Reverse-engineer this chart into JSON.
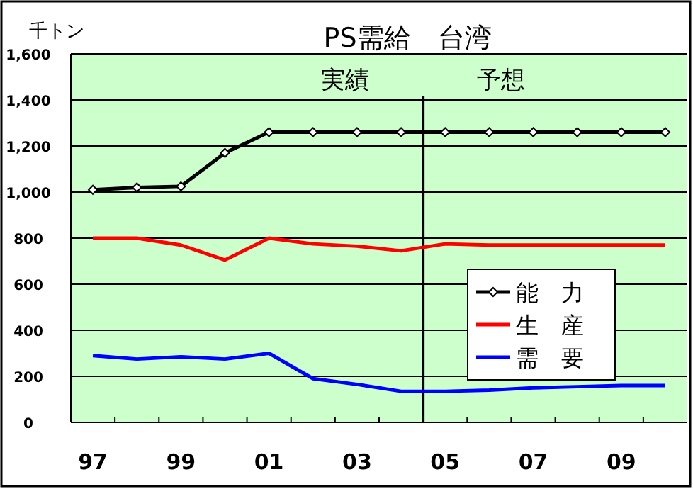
{
  "chart_data": {
    "type": "line",
    "title": "PS需給　台湾",
    "ylabel": "千トン",
    "x": [
      1997,
      1998,
      1999,
      2000,
      2001,
      2002,
      2003,
      2004,
      2005,
      2006,
      2007,
      2008,
      2009,
      2010
    ],
    "xlim": [
      1996.5,
      2010.5
    ],
    "xticks": [
      {
        "value": 1997,
        "label": "97"
      },
      {
        "value": 1999,
        "label": "99"
      },
      {
        "value": 2001,
        "label": "01"
      },
      {
        "value": 2003,
        "label": "03"
      },
      {
        "value": 2005,
        "label": "05"
      },
      {
        "value": 2007,
        "label": "07"
      },
      {
        "value": 2009,
        "label": "09"
      }
    ],
    "ylim": [
      0,
      1600
    ],
    "yticks": [
      {
        "value": 0,
        "label": "0"
      },
      {
        "value": 200,
        "label": "200"
      },
      {
        "value": 400,
        "label": "400"
      },
      {
        "value": 600,
        "label": "600"
      },
      {
        "value": 800,
        "label": "800"
      },
      {
        "value": 1000,
        "label": "1,000"
      },
      {
        "value": 1200,
        "label": "1,200"
      },
      {
        "value": 1400,
        "label": "1,400"
      },
      {
        "value": 1600,
        "label": "1,600"
      }
    ],
    "grid": "y",
    "legend": "right",
    "ref_lines": [
      {
        "axis": "x",
        "value": 2004.5,
        "color": "#000000"
      }
    ],
    "annotations": [
      "実績",
      "予想"
    ],
    "series": [
      {
        "name": "能　力",
        "color": "#000000",
        "marker": "diamond",
        "values": [
          1010,
          1020,
          1025,
          1170,
          1260,
          1260,
          1260,
          1260,
          1260,
          1260,
          1260,
          1260,
          1260,
          1260
        ]
      },
      {
        "name": "生　産",
        "color": "#ff0000",
        "values": [
          800,
          800,
          770,
          705,
          800,
          775,
          765,
          745,
          775,
          770,
          770,
          770,
          770,
          770
        ]
      },
      {
        "name": "需　要",
        "color": "#0000ff",
        "values": [
          290,
          275,
          285,
          275,
          300,
          190,
          165,
          135,
          135,
          140,
          150,
          155,
          160,
          160
        ]
      }
    ]
  }
}
